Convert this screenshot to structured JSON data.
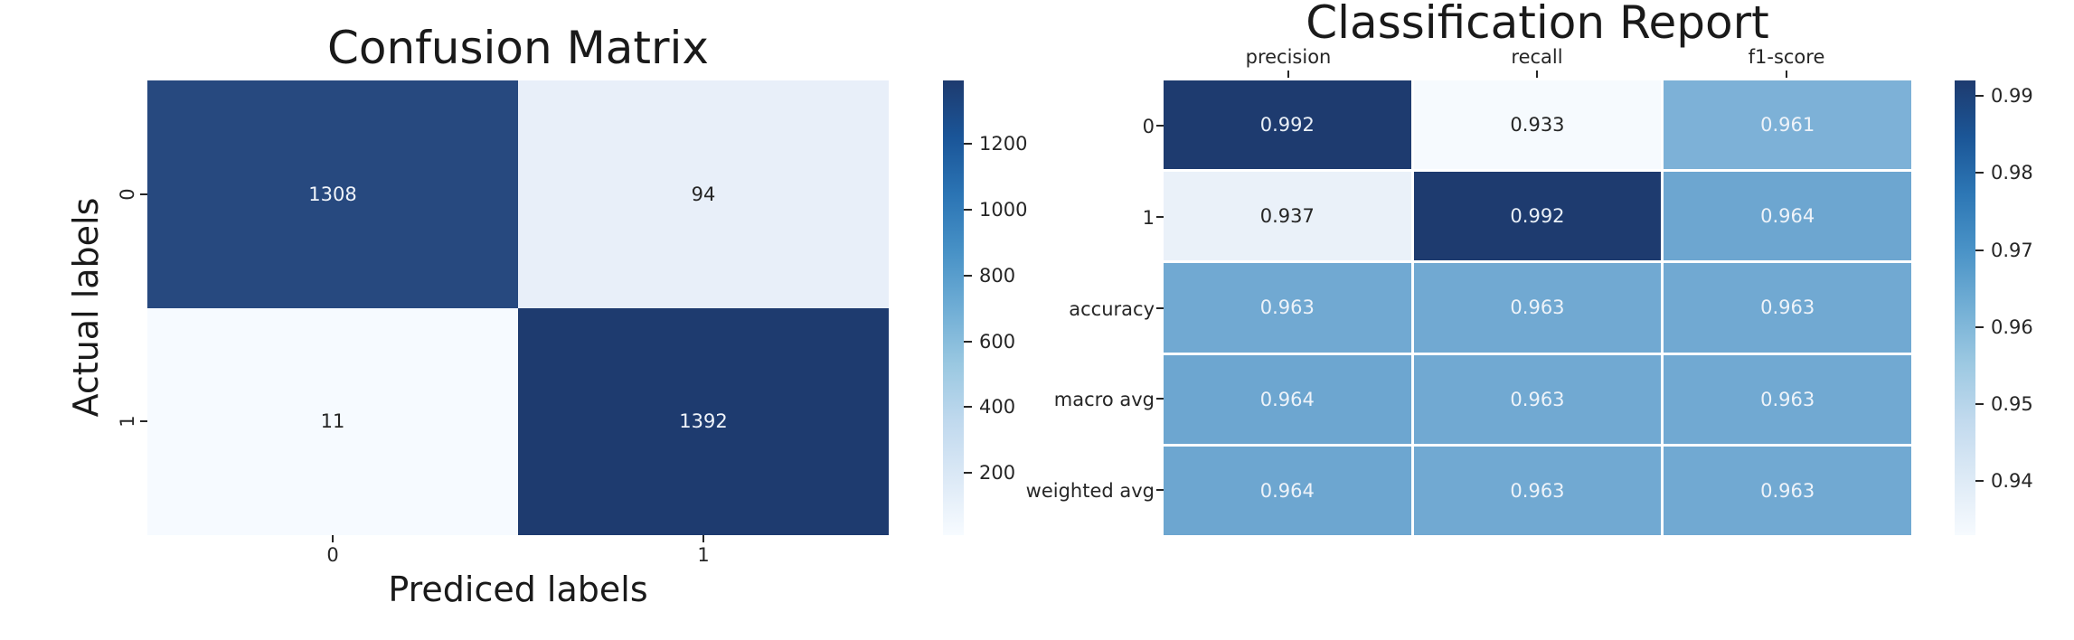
{
  "confusion_matrix": {
    "title": "Confusion Matrix",
    "xlabel": "Prediced labels",
    "ylabel": "Actual labels",
    "xticklabels": [
      "0",
      "1"
    ],
    "yticklabels": [
      "0",
      "1"
    ],
    "cells": [
      {
        "value": "1308",
        "bg": "#27497f",
        "fg": "#f0f4fa"
      },
      {
        "value": "94",
        "bg": "#e8eff9",
        "fg": "#262626"
      },
      {
        "value": "11",
        "bg": "#f6faff",
        "fg": "#262626"
      },
      {
        "value": "1392",
        "bg": "#1e3b6f",
        "fg": "#f0f4fa"
      }
    ],
    "colorbar": {
      "gradient": [
        "#f7fbff",
        "#dce9f6",
        "#c0d9ee",
        "#9ac8e1",
        "#6fadd5",
        "#4791c6",
        "#2b74b4",
        "#1a5598",
        "#1e3b6f"
      ],
      "ticks": [
        {
          "label": "1200",
          "pos": 13.9
        },
        {
          "label": "1000",
          "pos": 28.4
        },
        {
          "label": "800",
          "pos": 42.9
        },
        {
          "label": "600",
          "pos": 57.4
        },
        {
          "label": "400",
          "pos": 71.8
        },
        {
          "label": "200",
          "pos": 86.3
        }
      ]
    }
  },
  "classification_report": {
    "title": "Classification Report",
    "columns": [
      "precision",
      "recall",
      "f1-score"
    ],
    "rows": [
      "0",
      "1",
      "accuracy",
      "macro avg",
      "weighted avg"
    ],
    "cells": [
      {
        "value": "0.992",
        "bg": "#1e3b6f",
        "fg": "#eaf0f7"
      },
      {
        "value": "0.933",
        "bg": "#f6fafe",
        "fg": "#262626"
      },
      {
        "value": "0.961",
        "bg": "#7db1d7",
        "fg": "#eef3f9"
      },
      {
        "value": "0.937",
        "bg": "#eaf1f9",
        "fg": "#262626"
      },
      {
        "value": "0.992",
        "bg": "#1e3b6f",
        "fg": "#eaf0f7"
      },
      {
        "value": "0.964",
        "bg": "#6da6d0",
        "fg": "#eef3f9"
      },
      {
        "value": "0.963",
        "bg": "#71a9d2",
        "fg": "#eef3f9"
      },
      {
        "value": "0.963",
        "bg": "#71a9d2",
        "fg": "#eef3f9"
      },
      {
        "value": "0.963",
        "bg": "#71a9d2",
        "fg": "#eef3f9"
      },
      {
        "value": "0.964",
        "bg": "#6da6d0",
        "fg": "#eef3f9"
      },
      {
        "value": "0.963",
        "bg": "#71a9d2",
        "fg": "#eef3f9"
      },
      {
        "value": "0.963",
        "bg": "#71a9d2",
        "fg": "#eef3f9"
      },
      {
        "value": "0.964",
        "bg": "#6da6d0",
        "fg": "#eef3f9"
      },
      {
        "value": "0.963",
        "bg": "#71a9d2",
        "fg": "#eef3f9"
      },
      {
        "value": "0.963",
        "bg": "#71a9d2",
        "fg": "#eef3f9"
      }
    ],
    "colorbar": {
      "gradient": [
        "#f6fafe",
        "#ddeaf6",
        "#c2daee",
        "#9dc9e2",
        "#73afd5",
        "#4a93c7",
        "#2d77b5",
        "#1b5697",
        "#1e3b6f"
      ],
      "ticks": [
        {
          "label": "0.99",
          "pos": 3.4
        },
        {
          "label": "0.98",
          "pos": 20.3
        },
        {
          "label": "0.97",
          "pos": 37.3
        },
        {
          "label": "0.96",
          "pos": 54.3
        },
        {
          "label": "0.95",
          "pos": 71.2
        },
        {
          "label": "0.94",
          "pos": 88.1
        }
      ]
    }
  },
  "chart_data": [
    {
      "type": "heatmap",
      "title": "Confusion Matrix",
      "xlabel": "Prediced labels",
      "ylabel": "Actual labels",
      "x": [
        "0",
        "1"
      ],
      "y": [
        "0",
        "1"
      ],
      "values": [
        [
          1308,
          94
        ],
        [
          11,
          1392
        ]
      ],
      "colormap": "Blues",
      "colorbar_ticks": [
        200,
        400,
        600,
        800,
        1000,
        1200
      ],
      "colorbar_position": "right",
      "grid": false
    },
    {
      "type": "heatmap",
      "title": "Classification Report",
      "xlabel": "",
      "ylabel": "",
      "x": [
        "precision",
        "recall",
        "f1-score"
      ],
      "y": [
        "0",
        "1",
        "accuracy",
        "macro avg",
        "weighted avg"
      ],
      "values": [
        [
          0.992,
          0.933,
          0.961
        ],
        [
          0.937,
          0.992,
          0.964
        ],
        [
          0.963,
          0.963,
          0.963
        ],
        [
          0.964,
          0.963,
          0.963
        ],
        [
          0.964,
          0.963,
          0.963
        ]
      ],
      "colormap": "Blues",
      "colorbar_ticks": [
        0.94,
        0.95,
        0.96,
        0.97,
        0.98,
        0.99
      ],
      "colorbar_position": "right",
      "x_axis_position": "top",
      "grid": true
    }
  ]
}
